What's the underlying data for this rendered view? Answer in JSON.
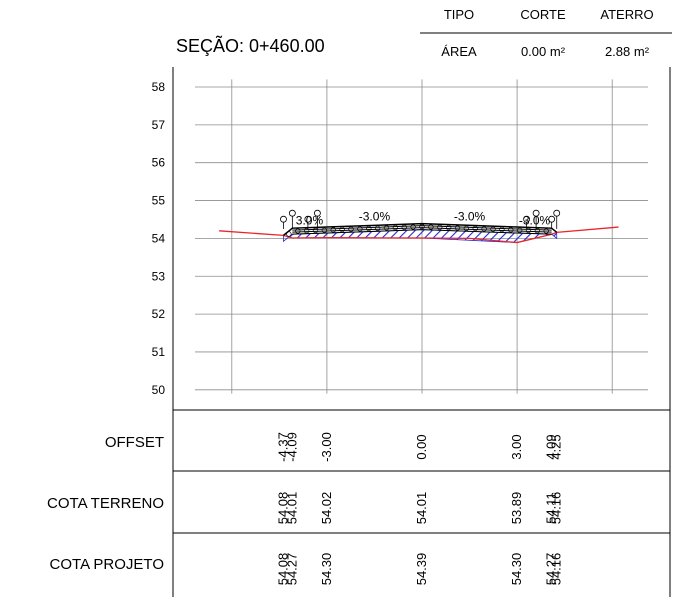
{
  "section_title": "SEÇÃO: 0+460.00",
  "summary_table": {
    "headers": [
      "TIPO",
      "CORTE",
      "ATERRO"
    ],
    "row_label": "ÁREA",
    "corte_area": "0.00 m²",
    "aterro_area": "2.88 m²"
  },
  "chart_data": {
    "type": "line",
    "title": "SEÇÃO: 0+460.00",
    "xlabel": "",
    "ylabel": "",
    "ylim": [
      50,
      58
    ],
    "y_ticks": [
      "58",
      "57",
      "56",
      "55",
      "54",
      "53",
      "52",
      "51",
      "50"
    ],
    "grid": true,
    "series": [
      {
        "name": "",
        "color": "#e8262b",
        "x": [
          -6.4,
          -4.37,
          -4.09,
          -3.0,
          0.0,
          1.5,
          3.0,
          4.09,
          4.25,
          6.2
        ],
        "y": [
          54.2,
          54.08,
          54.01,
          54.02,
          54.01,
          54.0,
          53.89,
          54.11,
          54.16,
          54.3
        ]
      },
      {
        "name": "",
        "color": "#000000",
        "x": [
          -4.37,
          -4.09,
          -3.0,
          0.0,
          3.0,
          4.09,
          4.25
        ],
        "y": [
          54.08,
          54.27,
          54.3,
          54.39,
          54.3,
          54.27,
          54.16
        ]
      }
    ],
    "slope_labels": [
      {
        "text": "-3.0%",
        "x": -1.5,
        "y": 54.42
      },
      {
        "text": "-3.0%",
        "x": 1.5,
        "y": 54.42
      },
      {
        "text": "3.0%",
        "x": -3.55,
        "y": 54.32
      },
      {
        "text": "-3.0%",
        "x": 3.55,
        "y": 54.32
      }
    ],
    "fill_area": {
      "type": "aterro",
      "pattern": "blue-hatch",
      "color": "#1f2ad6"
    }
  },
  "rows": [
    {
      "label": "OFFSET",
      "values": [
        "-4.37",
        "-4.09",
        "-3.00",
        "0.00",
        "3.00",
        "4.09",
        "4.25"
      ]
    },
    {
      "label": "COTA TERRENO",
      "values": [
        "54.08",
        "54.01",
        "54.02",
        "54.01",
        "53.89",
        "54.11",
        "54.16"
      ]
    },
    {
      "label": "COTA PROJETO",
      "values": [
        "54.08",
        "54.27",
        "54.30",
        "54.39",
        "54.30",
        "54.27",
        "54.16"
      ]
    }
  ],
  "row_value_offsets": [
    -4.37,
    -4.09,
    -3.0,
    0.0,
    3.0,
    4.09,
    4.25
  ]
}
